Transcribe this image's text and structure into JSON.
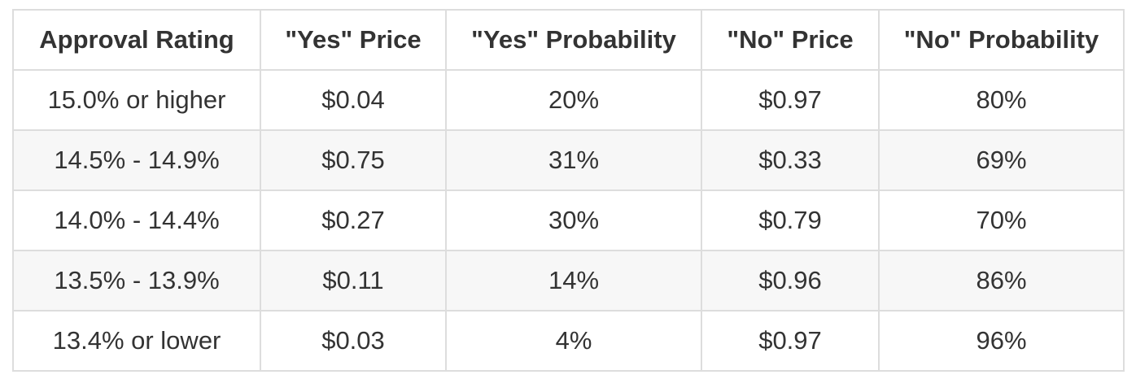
{
  "table": {
    "headers": [
      "Approval Rating",
      "\"Yes\" Price",
      "\"Yes\" Probability",
      "\"No\" Price",
      "\"No\" Probability"
    ],
    "rows": [
      [
        "15.0% or higher",
        "$0.04",
        "20%",
        "$0.97",
        "80%"
      ],
      [
        "14.5% - 14.9%",
        "$0.75",
        "31%",
        "$0.33",
        "69%"
      ],
      [
        "14.0% - 14.4%",
        "$0.27",
        "30%",
        "$0.79",
        "70%"
      ],
      [
        "13.5% - 13.9%",
        "$0.11",
        "14%",
        "$0.96",
        "86%"
      ],
      [
        "13.4% or lower",
        "$0.03",
        "4%",
        "$0.97",
        "96%"
      ]
    ]
  }
}
